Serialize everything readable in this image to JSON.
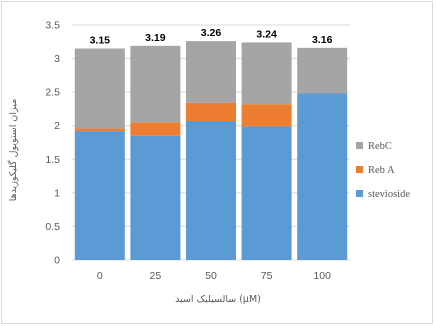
{
  "chart_data": {
    "type": "bar",
    "stacked": true,
    "categories": [
      "0",
      "25",
      "50",
      "75",
      "100"
    ],
    "series": [
      {
        "name": "stevioside",
        "color": "#5b9bd5",
        "values": [
          1.92,
          1.85,
          2.07,
          1.99,
          2.48
        ]
      },
      {
        "name": "Reb A",
        "color": "#ed7d31",
        "values": [
          0.04,
          0.2,
          0.27,
          0.33,
          0.0
        ]
      },
      {
        "name": "RebC",
        "color": "#a5a5a5",
        "values": [
          1.19,
          1.14,
          0.92,
          0.92,
          0.68
        ]
      }
    ],
    "totals": [
      "3.15",
      "3.19",
      "3.26",
      "3.24",
      "3.16"
    ],
    "xlabel": "سالسیلیک اسید (µM)",
    "ylabel": "میزان استویول گلیکوزیدها",
    "ylim": [
      0,
      3.5
    ],
    "yticks": [
      "0",
      "0.5",
      "1",
      "1.5",
      "2",
      "2.5",
      "3",
      "3.5"
    ],
    "grid": true,
    "legend_position": "right"
  }
}
